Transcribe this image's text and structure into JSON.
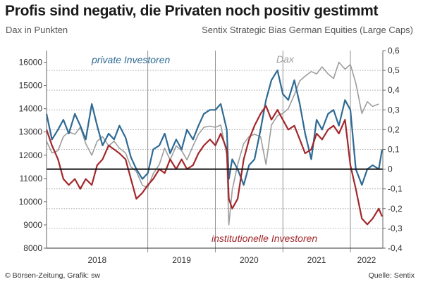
{
  "header": {
    "title": "Profis sind negativ, die Privaten noch positiv gestimmt",
    "subtitle_left": "Dax in Punkten",
    "subtitle_right": "Sentix Strategic Bias German Equities (Large Caps)"
  },
  "footer": {
    "source_left": "© Börsen-Zeitung, Grafik: sw",
    "source_right": "Quelle: Sentix"
  },
  "colors": {
    "private": "#2e6a94",
    "institutional": "#a3272b",
    "dax": "#9d9d9d",
    "zero_line": "#111111",
    "grid": "#9a9a9a"
  },
  "chart_data": {
    "type": "line",
    "title": "Profis sind negativ, die Privaten noch positiv gestimmt",
    "x_range": [
      2017.5,
      2022.48
    ],
    "x_ticks": [
      {
        "label": "2018",
        "start": 2017.5,
        "end": 2019.0
      },
      {
        "label": "2019",
        "start": 2019.0,
        "end": 2020.0
      },
      {
        "label": "2020",
        "start": 2020.0,
        "end": 2021.0
      },
      {
        "label": "2021",
        "start": 2021.0,
        "end": 2022.0
      },
      {
        "label": "2022",
        "start": 2022.0,
        "end": 2022.48
      }
    ],
    "y_left": {
      "label": "Dax in Punkten",
      "range": [
        8000,
        16500
      ],
      "ticks": [
        8000,
        9000,
        10000,
        11000,
        12000,
        13000,
        14000,
        15000,
        16000
      ]
    },
    "y_right": {
      "label": "Sentix Strategic Bias German Equities (Large Caps)",
      "range": [
        -0.4,
        0.6
      ],
      "ticks": [
        -0.4,
        -0.3,
        -0.2,
        -0.1,
        0,
        0.1,
        0.2,
        0.3,
        0.4,
        0.5,
        0.6
      ],
      "tick_labels": [
        "-0,4",
        "-0,3",
        "-0,2",
        "-0,1",
        "0",
        "0,1",
        "0,2",
        "0,3",
        "0,4",
        "0,5",
        "0,6"
      ]
    },
    "annotations": {
      "private": "private Investoren",
      "institutional": "institutionelle Investoren",
      "dax": "Dax"
    },
    "series": [
      {
        "name": "Dax",
        "axis": "left",
        "x": [
          2017.5,
          2017.58,
          2017.67,
          2017.75,
          2017.83,
          2017.92,
          2018.0,
          2018.08,
          2018.17,
          2018.25,
          2018.33,
          2018.42,
          2018.5,
          2018.58,
          2018.67,
          2018.75,
          2018.83,
          2018.92,
          2019.0,
          2019.08,
          2019.17,
          2019.25,
          2019.33,
          2019.42,
          2019.5,
          2019.58,
          2019.67,
          2019.75,
          2019.83,
          2019.92,
          2020.0,
          2020.08,
          2020.17,
          2020.2,
          2020.25,
          2020.33,
          2020.42,
          2020.5,
          2020.58,
          2020.67,
          2020.75,
          2020.83,
          2020.92,
          2021.0,
          2021.08,
          2021.17,
          2021.25,
          2021.33,
          2021.42,
          2021.5,
          2021.58,
          2021.67,
          2021.75,
          2021.83,
          2021.92,
          2022.0,
          2022.08,
          2022.17,
          2022.25,
          2022.33,
          2022.42
        ],
        "y": [
          12600,
          12100,
          12200,
          12800,
          13000,
          12900,
          13200,
          12500,
          12000,
          12600,
          12800,
          12400,
          12600,
          12300,
          12100,
          11500,
          11300,
          10700,
          10600,
          11200,
          11600,
          12300,
          11800,
          12400,
          12200,
          11800,
          12400,
          12900,
          13200,
          13250,
          13200,
          13300,
          12000,
          9000,
          10500,
          11600,
          12500,
          12800,
          12900,
          12800,
          11600,
          13300,
          13700,
          13800,
          14000,
          14600,
          15200,
          15400,
          15600,
          15500,
          15800,
          15500,
          15300,
          16000,
          15700,
          15900,
          15100,
          13800,
          14300,
          14100,
          14200
        ]
      },
      {
        "name": "private Investoren",
        "axis": "right",
        "x": [
          2017.5,
          2017.58,
          2017.67,
          2017.75,
          2017.83,
          2017.92,
          2018.0,
          2018.08,
          2018.17,
          2018.25,
          2018.33,
          2018.42,
          2018.5,
          2018.58,
          2018.67,
          2018.75,
          2018.83,
          2018.92,
          2019.0,
          2019.08,
          2019.17,
          2019.25,
          2019.33,
          2019.42,
          2019.5,
          2019.58,
          2019.67,
          2019.75,
          2019.83,
          2019.92,
          2020.0,
          2020.08,
          2020.17,
          2020.2,
          2020.25,
          2020.33,
          2020.42,
          2020.5,
          2020.58,
          2020.67,
          2020.75,
          2020.83,
          2020.92,
          2021.0,
          2021.08,
          2021.17,
          2021.25,
          2021.33,
          2021.42,
          2021.5,
          2021.58,
          2021.67,
          2021.75,
          2021.83,
          2021.92,
          2022.0,
          2022.08,
          2022.17,
          2022.25,
          2022.33,
          2022.42,
          2022.47
        ],
        "y": [
          0.28,
          0.15,
          0.2,
          0.25,
          0.18,
          0.28,
          0.22,
          0.15,
          0.33,
          0.22,
          0.12,
          0.18,
          0.15,
          0.22,
          0.16,
          0.06,
          0.0,
          -0.05,
          -0.02,
          0.1,
          0.12,
          0.18,
          0.08,
          0.15,
          0.1,
          0.2,
          0.15,
          0.22,
          0.28,
          0.3,
          0.3,
          0.33,
          0.2,
          -0.05,
          0.05,
          0.0,
          -0.08,
          0.02,
          0.05,
          0.2,
          0.35,
          0.45,
          0.5,
          0.38,
          0.35,
          0.45,
          0.33,
          0.18,
          0.05,
          0.25,
          0.2,
          0.28,
          0.3,
          0.22,
          0.35,
          0.3,
          0.0,
          -0.08,
          0.0,
          0.02,
          0.0,
          0.1
        ]
      },
      {
        "name": "institutionelle Investoren",
        "axis": "right",
        "x": [
          2017.5,
          2017.58,
          2017.67,
          2017.75,
          2017.83,
          2017.92,
          2018.0,
          2018.08,
          2018.17,
          2018.25,
          2018.33,
          2018.42,
          2018.5,
          2018.58,
          2018.67,
          2018.75,
          2018.83,
          2018.92,
          2019.0,
          2019.08,
          2019.17,
          2019.25,
          2019.33,
          2019.42,
          2019.5,
          2019.58,
          2019.67,
          2019.75,
          2019.83,
          2019.92,
          2020.0,
          2020.08,
          2020.17,
          2020.2,
          2020.25,
          2020.33,
          2020.42,
          2020.5,
          2020.58,
          2020.67,
          2020.75,
          2020.83,
          2020.92,
          2021.0,
          2021.08,
          2021.17,
          2021.25,
          2021.33,
          2021.42,
          2021.5,
          2021.58,
          2021.67,
          2021.75,
          2021.83,
          2021.92,
          2022.0,
          2022.08,
          2022.17,
          2022.25,
          2022.33,
          2022.42,
          2022.47
        ],
        "y": [
          0.2,
          0.12,
          0.05,
          -0.05,
          -0.08,
          -0.05,
          -0.1,
          -0.05,
          -0.08,
          0.02,
          0.05,
          0.12,
          0.1,
          0.08,
          0.05,
          -0.05,
          -0.15,
          -0.12,
          -0.08,
          -0.05,
          0.0,
          -0.02,
          0.05,
          0.0,
          0.05,
          0.0,
          0.02,
          0.08,
          0.12,
          0.15,
          0.12,
          0.18,
          0.1,
          -0.15,
          -0.2,
          -0.15,
          0.05,
          0.15,
          0.22,
          0.28,
          0.32,
          0.25,
          0.3,
          0.25,
          0.2,
          0.22,
          0.15,
          0.08,
          0.1,
          0.18,
          0.15,
          0.2,
          0.22,
          0.18,
          0.25,
          0.02,
          -0.1,
          -0.25,
          -0.28,
          -0.25,
          -0.2,
          -0.24
        ]
      }
    ]
  }
}
